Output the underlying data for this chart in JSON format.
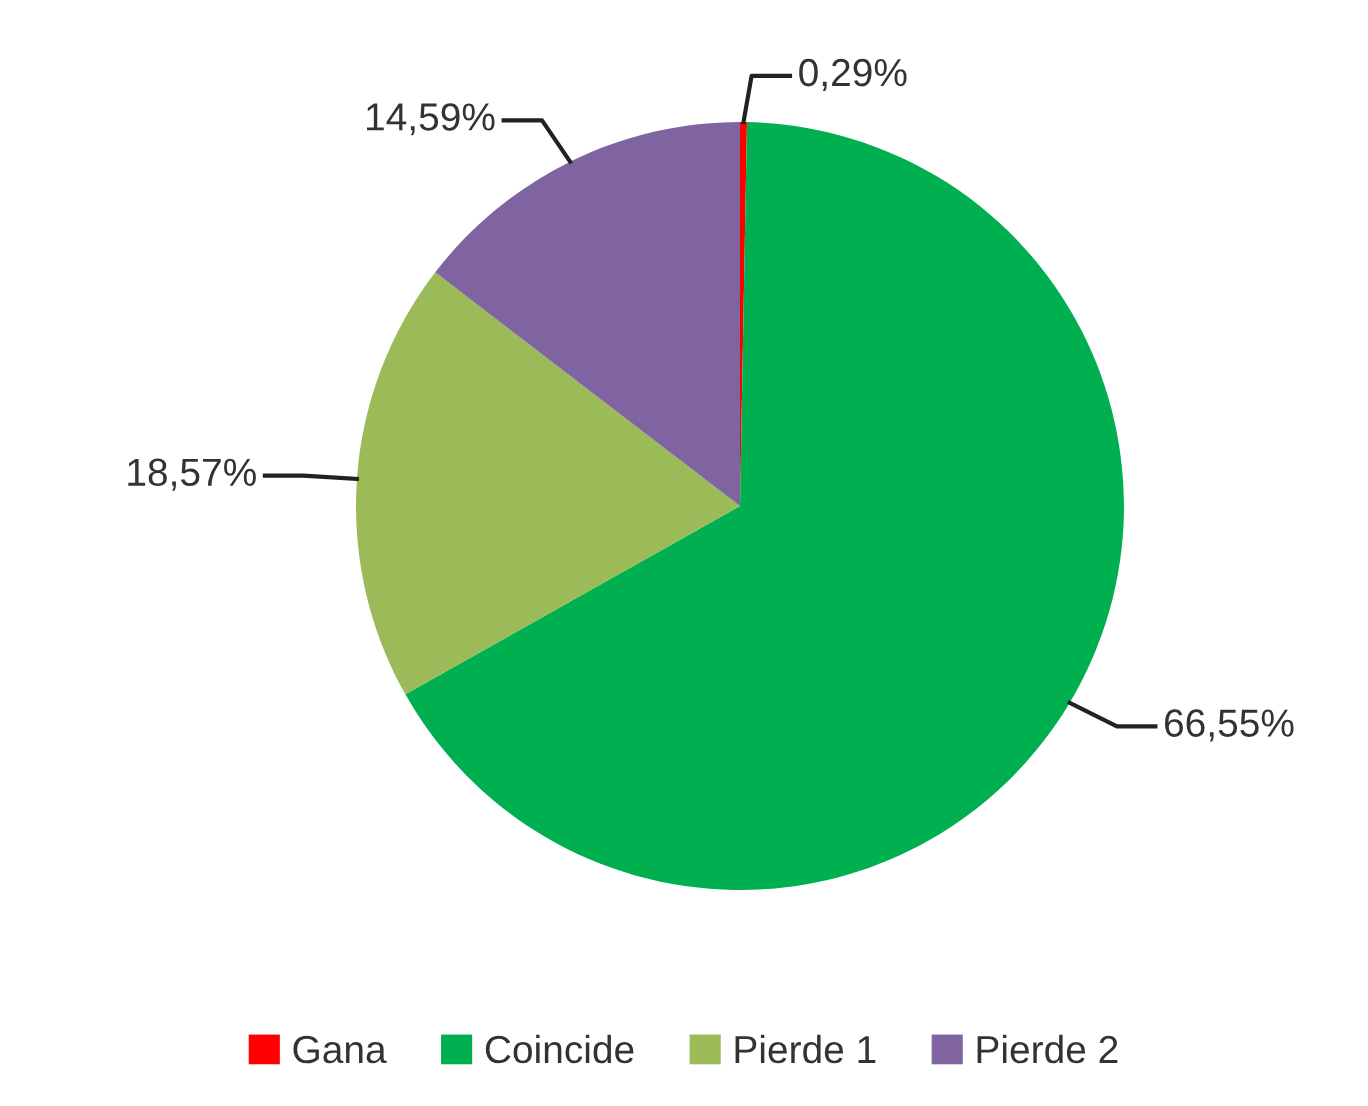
{
  "chart_data": {
    "type": "pie",
    "categories": [
      "Gana",
      "Coincide",
      "Pierde 1",
      "Pierde 2"
    ],
    "values": [
      0.29,
      66.55,
      18.57,
      14.59
    ],
    "colors": [
      "#ff0000",
      "#00b050",
      "#9bbb59",
      "#8064a2"
    ],
    "value_labels": [
      "0,29%",
      "66,55%",
      "18,57%",
      "14,59%"
    ],
    "legend": "bottom"
  }
}
